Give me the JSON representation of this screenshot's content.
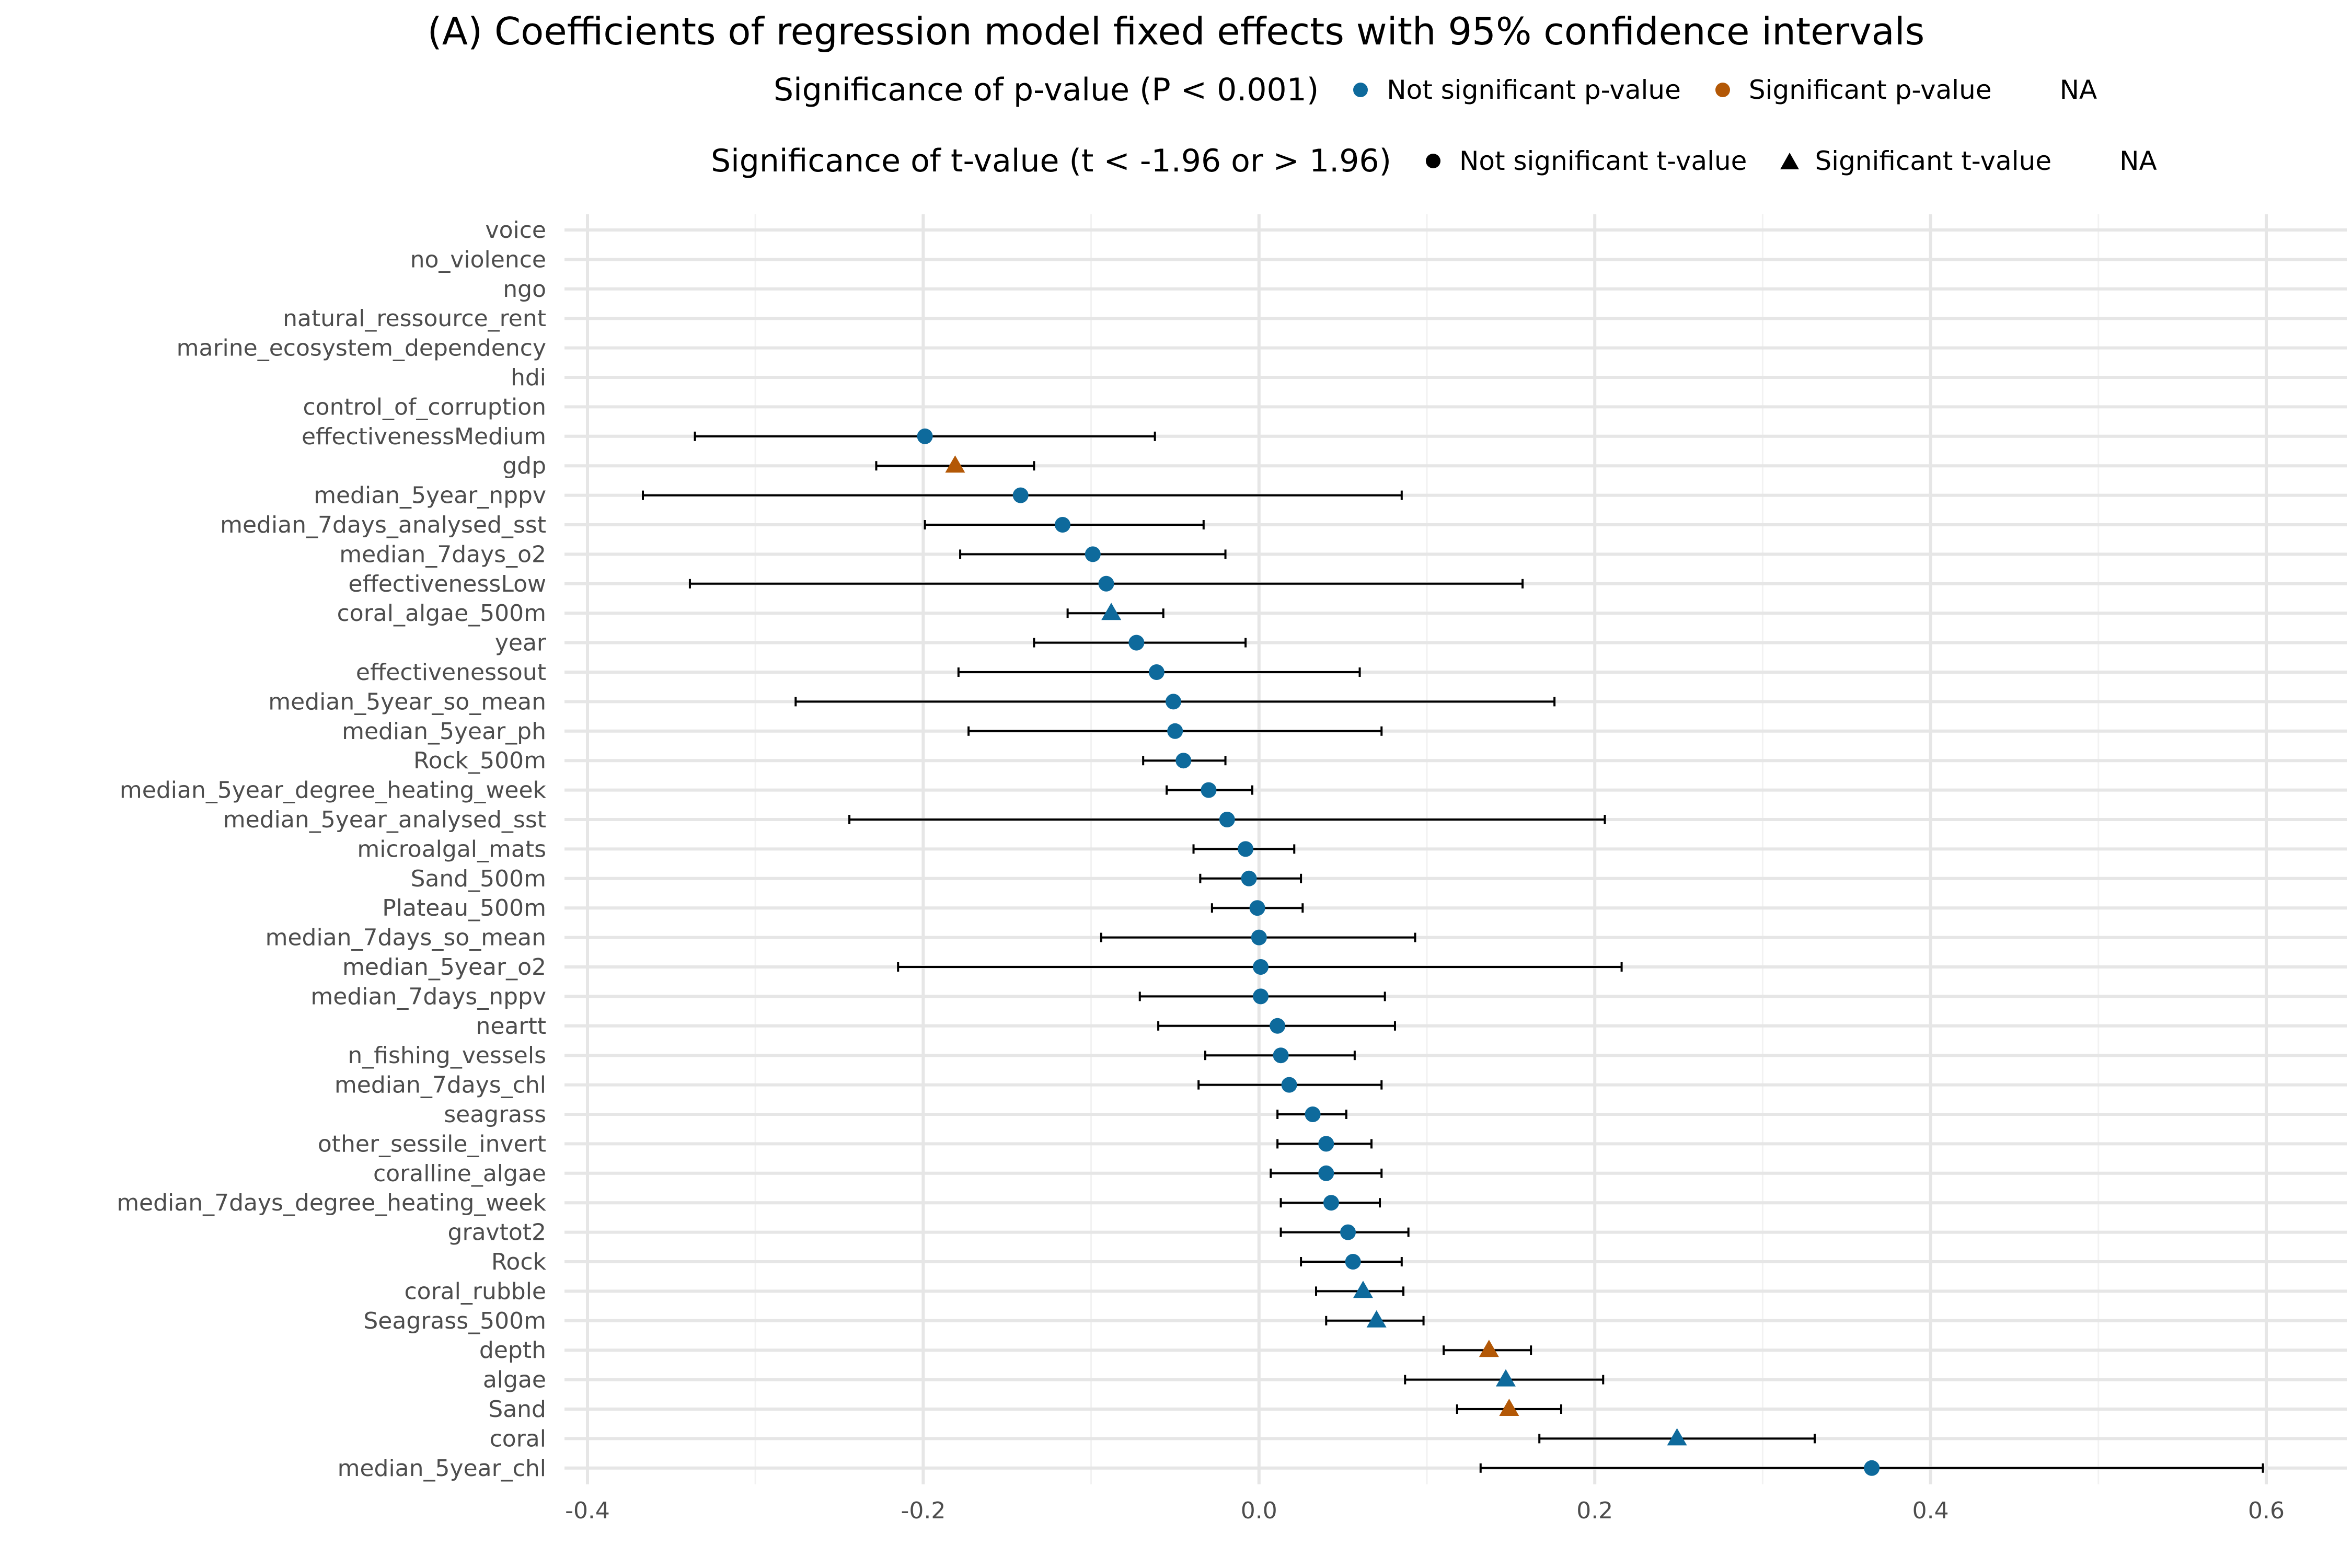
{
  "chart_data": {
    "type": "scatter",
    "title": "(A) Coefficients of regression model fixed effects with 95% confidence intervals",
    "xlim": [
      -0.4,
      0.6
    ],
    "x_ticks": [
      -0.4,
      -0.2,
      0.0,
      0.2,
      0.4,
      0.6
    ],
    "x_tick_labels": [
      "-0.4",
      "-0.2",
      "0.0",
      "0.2",
      "0.4",
      "0.6"
    ],
    "grid": true,
    "legend_position": "top",
    "legend": {
      "p_value": {
        "title": "Significance of p-value (P < 0.001)",
        "items": [
          {
            "label": "Not significant p-value",
            "color": "#0e6a9c"
          },
          {
            "label": "Significant p-value",
            "color": "#b35806"
          },
          {
            "label": "NA"
          }
        ]
      },
      "t_value": {
        "title": "Significance of t-value (t < -1.96 or > 1.96)",
        "items": [
          {
            "label": "Not significant t-value",
            "shape": "circle"
          },
          {
            "label": "Significant t-value",
            "shape": "triangle"
          },
          {
            "label": "NA"
          }
        ]
      }
    },
    "colors": {
      "not_significant_p": "#0e6a9c",
      "significant_p": "#b35806",
      "errorbar": "#000000"
    },
    "categories": [
      "voice",
      "no_violence",
      "ngo",
      "natural_ressource_rent",
      "marine_ecosystem_dependency",
      "hdi",
      "control_of_corruption",
      "effectivenessMedium",
      "gdp",
      "median_5year_nppv",
      "median_7days_analysed_sst",
      "median_7days_o2",
      "effectivenessLow",
      "coral_algae_500m",
      "year",
      "effectivenessout",
      "median_5year_so_mean",
      "median_5year_ph",
      "Rock_500m",
      "median_5year_degree_heating_week",
      "median_5year_analysed_sst",
      "microalgal_mats",
      "Sand_500m",
      "Plateau_500m",
      "median_7days_so_mean",
      "median_5year_o2",
      "median_7days_nppv",
      "neartt",
      "n_fishing_vessels",
      "median_7days_chl",
      "seagrass",
      "other_sessile_invert",
      "coralline_algae",
      "median_7days_degree_heating_week",
      "gravtot2",
      "Rock",
      "coral_rubble",
      "Seagrass_500m",
      "depth",
      "algae",
      "Sand",
      "coral",
      "median_5year_chl"
    ],
    "estimates": [
      null,
      null,
      null,
      null,
      null,
      null,
      null,
      -0.199,
      -0.181,
      -0.142,
      -0.117,
      -0.099,
      -0.091,
      -0.088,
      -0.073,
      -0.061,
      -0.051,
      -0.05,
      -0.045,
      -0.03,
      -0.019,
      -0.008,
      -0.006,
      -0.001,
      0.0,
      0.001,
      0.001,
      0.011,
      0.013,
      0.018,
      0.032,
      0.04,
      0.04,
      0.043,
      0.053,
      0.056,
      0.062,
      0.07,
      0.137,
      0.147,
      0.149,
      0.249,
      0.365
    ],
    "ci_low": [
      null,
      null,
      null,
      null,
      null,
      null,
      null,
      -0.336,
      -0.228,
      -0.367,
      -0.199,
      -0.178,
      -0.339,
      -0.114,
      -0.134,
      -0.179,
      -0.276,
      -0.173,
      -0.069,
      -0.055,
      -0.244,
      -0.039,
      -0.035,
      -0.028,
      -0.094,
      -0.215,
      -0.071,
      -0.06,
      -0.032,
      -0.036,
      0.011,
      0.011,
      0.007,
      0.013,
      0.013,
      0.025,
      0.034,
      0.04,
      0.11,
      0.087,
      0.118,
      0.167,
      0.132
    ],
    "ci_high": [
      null,
      null,
      null,
      null,
      null,
      null,
      null,
      -0.062,
      -0.134,
      0.085,
      -0.033,
      -0.02,
      0.157,
      -0.057,
      -0.008,
      0.06,
      0.176,
      0.073,
      -0.02,
      -0.004,
      0.206,
      0.021,
      0.025,
      0.026,
      0.093,
      0.216,
      0.075,
      0.081,
      0.057,
      0.073,
      0.052,
      0.067,
      0.073,
      0.072,
      0.089,
      0.085,
      0.086,
      0.098,
      0.162,
      0.205,
      0.18,
      0.331,
      0.598
    ],
    "p_significant": [
      null,
      null,
      null,
      null,
      null,
      null,
      null,
      false,
      true,
      false,
      false,
      false,
      false,
      false,
      false,
      false,
      false,
      false,
      false,
      false,
      false,
      false,
      false,
      false,
      false,
      false,
      false,
      false,
      false,
      false,
      false,
      false,
      false,
      false,
      false,
      false,
      false,
      false,
      true,
      false,
      true,
      false,
      false
    ],
    "t_significant": [
      null,
      null,
      null,
      null,
      null,
      null,
      null,
      false,
      true,
      false,
      false,
      false,
      false,
      true,
      false,
      false,
      false,
      false,
      false,
      false,
      false,
      false,
      false,
      false,
      false,
      false,
      false,
      false,
      false,
      false,
      false,
      false,
      false,
      false,
      false,
      false,
      true,
      true,
      true,
      true,
      true,
      true,
      false
    ]
  }
}
